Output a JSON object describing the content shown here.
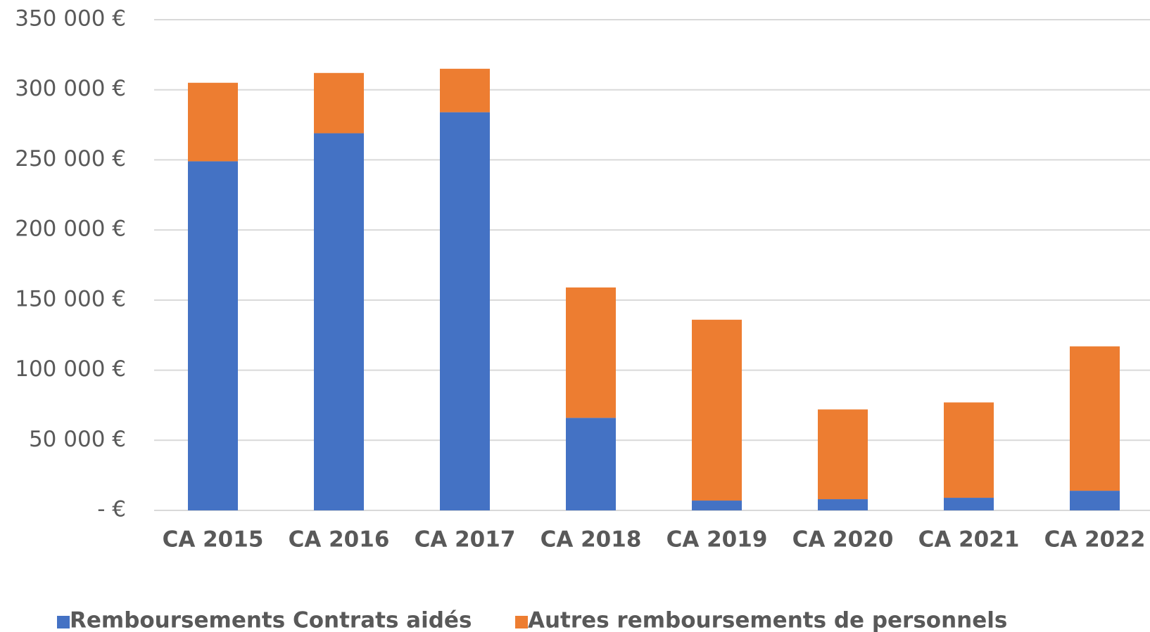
{
  "chart_data": {
    "type": "stacked_bar",
    "categories": [
      "CA 2015",
      "CA 2016",
      "CA 2017",
      "CA 2018",
      "CA 2019",
      "CA 2020",
      "CA 2021",
      "CA 2022"
    ],
    "series": [
      {
        "name": "Remboursements Contrats aidés",
        "color": "#4472c4",
        "values": [
          249000,
          269000,
          284000,
          66000,
          7000,
          8000,
          9000,
          14000
        ]
      },
      {
        "name": "Autres remboursements de personnels",
        "color": "#ed7d31",
        "values": [
          56000,
          43000,
          31000,
          93000,
          129000,
          64000,
          68000,
          103000
        ]
      }
    ],
    "ylim": [
      0,
      350000
    ],
    "yticks": [
      {
        "value": 0,
        "label": "- €"
      },
      {
        "value": 50000,
        "label": "50 000 €"
      },
      {
        "value": 100000,
        "label": "100 000 €"
      },
      {
        "value": 150000,
        "label": "150 000 €"
      },
      {
        "value": 200000,
        "label": "200 000 €"
      },
      {
        "value": 250000,
        "label": "250 000 €"
      },
      {
        "value": 300000,
        "label": "300 000 €"
      },
      {
        "value": 350000,
        "label": "350 000 €"
      }
    ],
    "grid": true,
    "legend": "bottom"
  }
}
